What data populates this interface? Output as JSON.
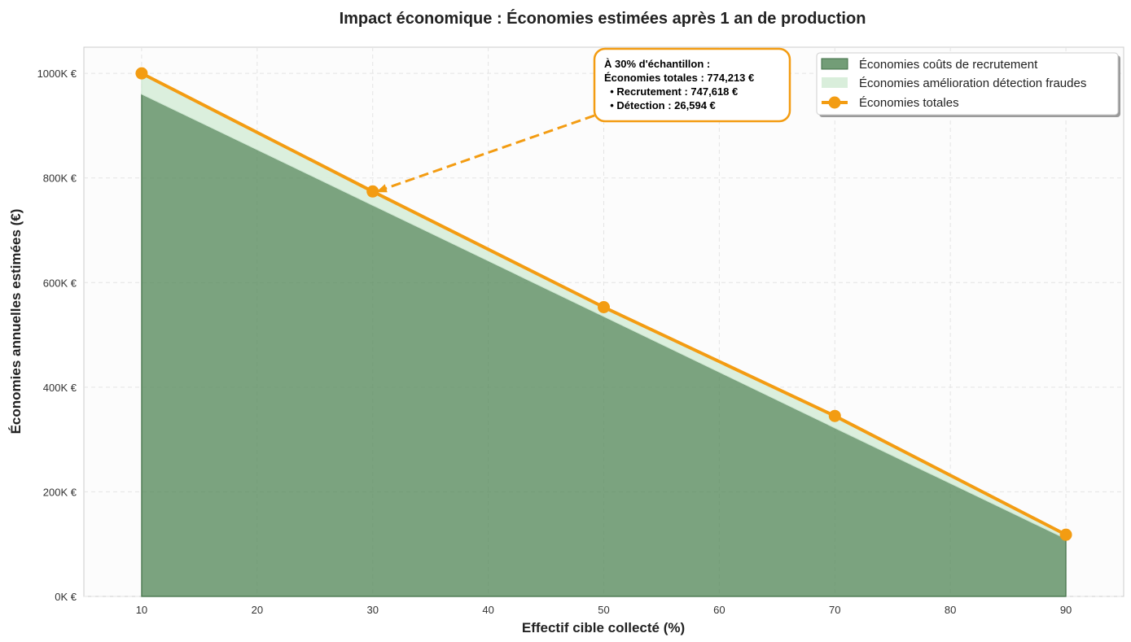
{
  "chart_data": {
    "type": "area",
    "title": "Impact économique : Économies estimées après 1 an de production",
    "xlabel": "Effectif cible collecté (%)",
    "ylabel": "Économies annuelles estimées (€)",
    "x": [
      10,
      30,
      50,
      70,
      90
    ],
    "xlim": [
      5,
      95
    ],
    "ylim": [
      0,
      1050000
    ],
    "xticks": [
      10,
      20,
      30,
      40,
      50,
      60,
      70,
      80,
      90
    ],
    "yticks": [
      0,
      200000,
      400000,
      600000,
      800000,
      1000000
    ],
    "ytick_labels": [
      "0K €",
      "200K €",
      "400K €",
      "600K €",
      "800K €",
      "1000K €"
    ],
    "grid": true,
    "legend_position": "top-right",
    "series": [
      {
        "name": "Économies coûts de recrutement",
        "kind": "stacked-area",
        "color": "#5a8c5f",
        "values": [
          960000,
          747618,
          535000,
          322000,
          110000
        ]
      },
      {
        "name": "Économies amélioration détection fraudes",
        "kind": "stacked-area",
        "color": "#d9eedb",
        "values": [
          40000,
          26594,
          18000,
          23000,
          8000
        ]
      },
      {
        "name": "Économies totales",
        "kind": "line",
        "color": "#f39c12",
        "values": [
          1000000,
          774213,
          553000,
          345000,
          118000
        ]
      }
    ],
    "annotation": {
      "target_x": 30,
      "target_y": 774213,
      "lines": [
        "À 30% d'échantillon :",
        "Économies totales : 774,213 €",
        "  • Recrutement : 747,618 €",
        "  • Détection : 26,594 €"
      ]
    }
  }
}
